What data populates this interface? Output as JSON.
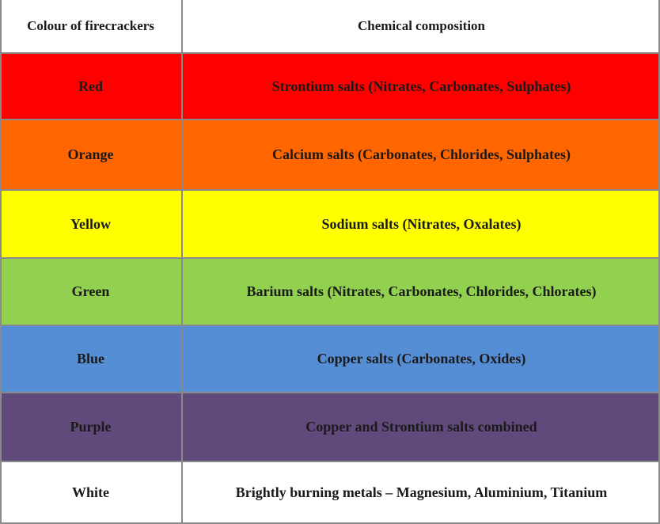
{
  "table": {
    "headers": [
      "Colour of firecrackers",
      "Chemical composition"
    ],
    "rows": [
      {
        "colour": "Red",
        "composition": "Strontium salts (Nitrates, Carbonates, Sulphates)",
        "fill": "#ff0000"
      },
      {
        "colour": "Orange",
        "composition": "Calcium salts (Carbonates, Chlorides, Sulphates)",
        "fill": "#ff6600"
      },
      {
        "colour": "Yellow",
        "composition": "Sodium salts (Nitrates, Oxalates)",
        "fill": "#ffff00"
      },
      {
        "colour": "Green",
        "composition": "Barium salts (Nitrates, Carbonates, Chlorides, Chlorates)",
        "fill": "#92d050"
      },
      {
        "colour": "Blue",
        "composition": "Copper salts (Carbonates, Oxides)",
        "fill": "#558ed5"
      },
      {
        "colour": "Purple",
        "composition": "Copper and Strontium salts combined",
        "fill": "#604a7b"
      },
      {
        "colour": "White",
        "composition": "Brightly burning metals – Magnesium, Aluminium, Titanium",
        "fill": "#ffffff"
      }
    ]
  }
}
